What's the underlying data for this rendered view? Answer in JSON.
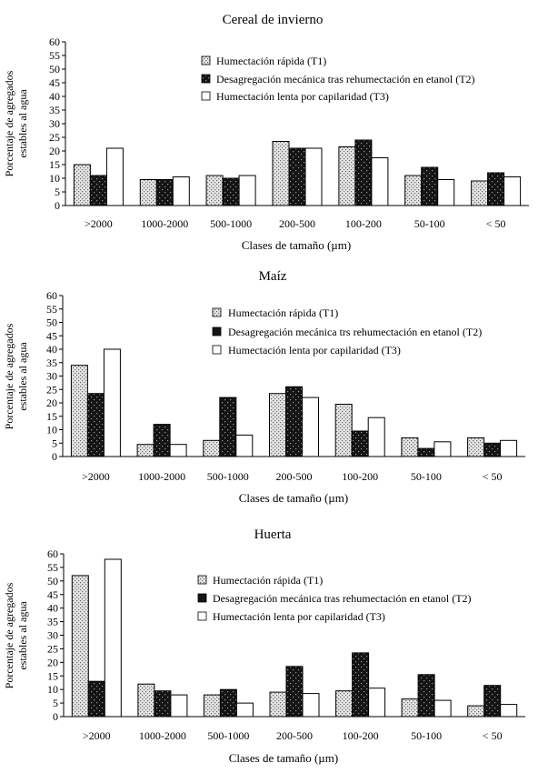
{
  "colors": {
    "axis": "#000000",
    "t1_fill": "#dcdcdc",
    "t2_fill": "#1a1a1a",
    "t3_fill": "#ffffff"
  },
  "chart_data": [
    {
      "type": "bar",
      "title": "Cereal de invierno",
      "xlabel": "Clases de tamaño (µm)",
      "ylabel": [
        "Porcentaje de agregados",
        "estables al agua"
      ],
      "categories": [
        ">2000",
        "1000-2000",
        "500-1000",
        "200-500",
        "100-200",
        "50-100",
        "< 50"
      ],
      "yticks": [
        "0",
        "5",
        "10",
        "15",
        "20",
        "25",
        "30",
        "35",
        "40",
        "45",
        "50",
        "55",
        "60"
      ],
      "ylim": [
        0,
        60
      ],
      "series": [
        {
          "name": "Humectación rápida (T1)",
          "values": [
            15,
            9.5,
            11,
            23.5,
            21.5,
            11,
            9
          ]
        },
        {
          "name": "Desagregación mecánica tras rehumectación en etanol (T2)",
          "values": [
            11,
            9.5,
            10,
            21,
            24,
            14,
            12
          ]
        },
        {
          "name": "Humectación lenta por capilaridad (T3)",
          "values": [
            21,
            10.5,
            11,
            21,
            17.5,
            9.5,
            10.5
          ]
        }
      ]
    },
    {
      "type": "bar",
      "title": "Maíz",
      "xlabel": "Clases de tamaño (µm)",
      "ylabel": [
        "Porcentaje de agregados",
        "estables al agua"
      ],
      "categories": [
        ">2000",
        "1000-2000",
        "500-1000",
        "200-500",
        "100-200",
        "50-100",
        "< 50"
      ],
      "yticks": [
        "0",
        "5",
        "10",
        "15",
        "20",
        "25",
        "30",
        "35",
        "40",
        "45",
        "50",
        "55",
        "60"
      ],
      "ylim": [
        0,
        60
      ],
      "series": [
        {
          "name": "Humectación rápida (T1)",
          "values": [
            34,
            4.5,
            6,
            23.5,
            19.5,
            7,
            7
          ]
        },
        {
          "name": "Desagregación mecánica trs rehumectación en etanol (T2)",
          "values": [
            23.5,
            12,
            22,
            26,
            9.5,
            3,
            5
          ]
        },
        {
          "name": "Humectación lenta por capilaridad (T3)",
          "values": [
            40,
            4.5,
            8,
            22,
            14.5,
            5.5,
            6
          ]
        }
      ]
    },
    {
      "type": "bar",
      "title": "Huerta",
      "xlabel": "Clases de tamaño (µm)",
      "ylabel": [
        "Porcentaje de agregados",
        "estables al agua"
      ],
      "categories": [
        ">2000",
        "1000-2000",
        "500-1000",
        "200-500",
        "100-200",
        "50-100",
        "< 50"
      ],
      "yticks": [
        "0",
        "5",
        "10",
        "15",
        "20",
        "25",
        "30",
        "35",
        "40",
        "45",
        "50",
        "55",
        "60"
      ],
      "ylim": [
        0,
        60
      ],
      "series": [
        {
          "name": "Humectación rápida (T1)",
          "values": [
            52,
            12,
            8,
            9,
            9.5,
            6.5,
            4
          ]
        },
        {
          "name": "Desagregación mecánica tras rehumectación en etanol (T2)",
          "values": [
            13,
            9.5,
            10,
            18.5,
            23.5,
            15.5,
            11.5
          ]
        },
        {
          "name": "Humectación lenta por capilaridad (T3)",
          "values": [
            58,
            8,
            5,
            8.5,
            10.5,
            6,
            4.5
          ]
        }
      ]
    }
  ]
}
